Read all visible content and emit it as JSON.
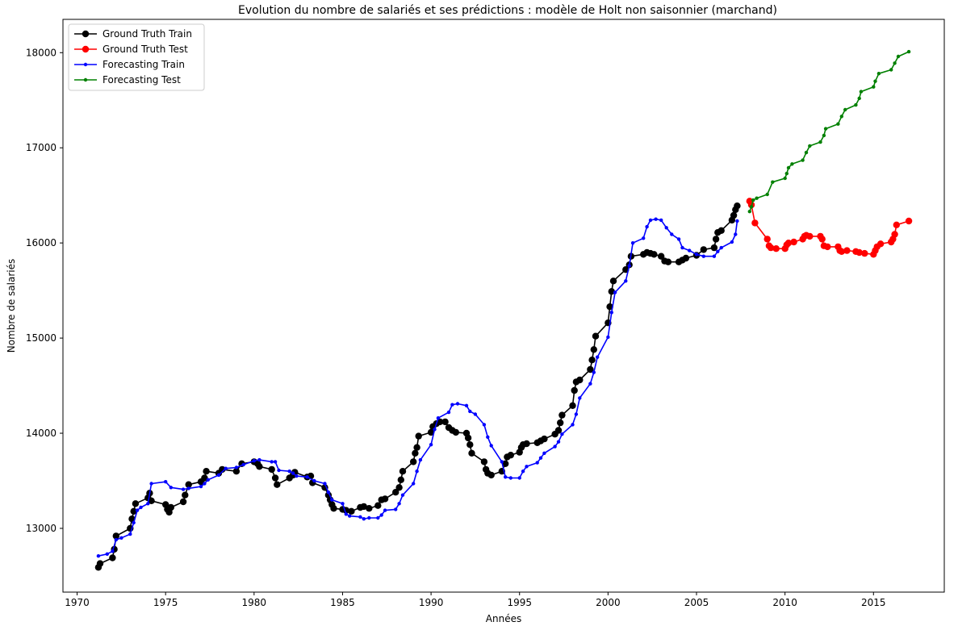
{
  "chart_data": {
    "type": "line",
    "title": "Evolution du nombre de salariés et ses prédictions : modèle de Holt non saisonnier (marchand)",
    "xlabel": "Années",
    "ylabel": "Nombre de salariés",
    "xlim": [
      1969.2,
      2019.0
    ],
    "ylim": [
      12330,
      18350
    ],
    "xticks": [
      1970,
      1975,
      1980,
      1985,
      1990,
      1995,
      2000,
      2005,
      2010,
      2015
    ],
    "yticks": [
      13000,
      14000,
      15000,
      16000,
      17000,
      18000
    ],
    "grid": false,
    "legend_position": "top-left",
    "series": [
      {
        "name": "Ground Truth Train",
        "color": "#000000",
        "marker_size": "large",
        "points": [
          [
            1971.2,
            12590
          ],
          [
            1971.3,
            12630
          ],
          [
            1972.0,
            12690
          ],
          [
            1972.1,
            12780
          ],
          [
            1972.2,
            12920
          ],
          [
            1973.0,
            13000
          ],
          [
            1973.1,
            13100
          ],
          [
            1973.2,
            13180
          ],
          [
            1973.3,
            13260
          ],
          [
            1974.0,
            13320
          ],
          [
            1974.1,
            13370
          ],
          [
            1974.2,
            13290
          ],
          [
            1975.0,
            13250
          ],
          [
            1975.1,
            13200
          ],
          [
            1975.2,
            13170
          ],
          [
            1975.3,
            13220
          ],
          [
            1976.0,
            13280
          ],
          [
            1976.1,
            13350
          ],
          [
            1976.3,
            13460
          ],
          [
            1977.0,
            13490
          ],
          [
            1977.2,
            13530
          ],
          [
            1977.3,
            13600
          ],
          [
            1978.0,
            13580
          ],
          [
            1978.2,
            13620
          ],
          [
            1979.0,
            13600
          ],
          [
            1979.3,
            13680
          ],
          [
            1980.0,
            13700
          ],
          [
            1980.2,
            13680
          ],
          [
            1980.3,
            13650
          ],
          [
            1981.0,
            13620
          ],
          [
            1981.2,
            13530
          ],
          [
            1981.3,
            13460
          ],
          [
            1982.0,
            13530
          ],
          [
            1982.2,
            13560
          ],
          [
            1982.3,
            13590
          ],
          [
            1983.0,
            13540
          ],
          [
            1983.2,
            13550
          ],
          [
            1983.3,
            13480
          ],
          [
            1984.0,
            13430
          ],
          [
            1984.2,
            13350
          ],
          [
            1984.3,
            13300
          ],
          [
            1984.4,
            13250
          ],
          [
            1984.5,
            13210
          ],
          [
            1985.0,
            13200
          ],
          [
            1985.2,
            13190
          ],
          [
            1985.5,
            13180
          ],
          [
            1986.0,
            13220
          ],
          [
            1986.2,
            13230
          ],
          [
            1986.5,
            13210
          ],
          [
            1987.0,
            13240
          ],
          [
            1987.2,
            13300
          ],
          [
            1987.4,
            13310
          ],
          [
            1988.0,
            13380
          ],
          [
            1988.2,
            13430
          ],
          [
            1988.3,
            13510
          ],
          [
            1988.4,
            13600
          ],
          [
            1989.0,
            13700
          ],
          [
            1989.1,
            13790
          ],
          [
            1989.2,
            13850
          ],
          [
            1989.3,
            13970
          ],
          [
            1990.0,
            14010
          ],
          [
            1990.1,
            14070
          ],
          [
            1990.3,
            14100
          ],
          [
            1990.5,
            14120
          ],
          [
            1990.8,
            14120
          ],
          [
            1991.0,
            14060
          ],
          [
            1991.2,
            14030
          ],
          [
            1991.4,
            14010
          ],
          [
            1992.0,
            14000
          ],
          [
            1992.1,
            13950
          ],
          [
            1992.2,
            13880
          ],
          [
            1992.3,
            13790
          ],
          [
            1993.0,
            13700
          ],
          [
            1993.1,
            13620
          ],
          [
            1993.2,
            13580
          ],
          [
            1993.4,
            13560
          ],
          [
            1994.0,
            13600
          ],
          [
            1994.2,
            13680
          ],
          [
            1994.3,
            13750
          ],
          [
            1994.5,
            13770
          ],
          [
            1995.0,
            13800
          ],
          [
            1995.1,
            13850
          ],
          [
            1995.2,
            13880
          ],
          [
            1995.4,
            13890
          ],
          [
            1996.0,
            13900
          ],
          [
            1996.2,
            13920
          ],
          [
            1996.4,
            13940
          ],
          [
            1997.0,
            13990
          ],
          [
            1997.2,
            14030
          ],
          [
            1997.3,
            14110
          ],
          [
            1997.4,
            14190
          ],
          [
            1998.0,
            14290
          ],
          [
            1998.1,
            14450
          ],
          [
            1998.2,
            14540
          ],
          [
            1998.4,
            14560
          ],
          [
            1999.0,
            14670
          ],
          [
            1999.1,
            14770
          ],
          [
            1999.2,
            14880
          ],
          [
            1999.3,
            15020
          ],
          [
            2000.0,
            15160
          ],
          [
            2000.1,
            15330
          ],
          [
            2000.2,
            15490
          ],
          [
            2000.3,
            15600
          ],
          [
            2001.0,
            15720
          ],
          [
            2001.2,
            15770
          ],
          [
            2001.3,
            15860
          ],
          [
            2002.0,
            15880
          ],
          [
            2002.2,
            15900
          ],
          [
            2002.4,
            15890
          ],
          [
            2002.6,
            15880
          ],
          [
            2003.0,
            15860
          ],
          [
            2003.2,
            15810
          ],
          [
            2003.4,
            15800
          ],
          [
            2004.0,
            15800
          ],
          [
            2004.2,
            15820
          ],
          [
            2004.4,
            15840
          ],
          [
            2005.0,
            15870
          ],
          [
            2005.4,
            15930
          ],
          [
            2006.0,
            15950
          ],
          [
            2006.1,
            16040
          ],
          [
            2006.2,
            16110
          ],
          [
            2006.4,
            16130
          ],
          [
            2007.0,
            16240
          ],
          [
            2007.1,
            16290
          ],
          [
            2007.2,
            16350
          ],
          [
            2007.3,
            16390
          ]
        ]
      },
      {
        "name": "Ground Truth Test",
        "color": "#ff0000",
        "marker_size": "large",
        "points": [
          [
            2008.0,
            16440
          ],
          [
            2008.1,
            16400
          ],
          [
            2008.3,
            16210
          ],
          [
            2009.0,
            16040
          ],
          [
            2009.1,
            15970
          ],
          [
            2009.2,
            15950
          ],
          [
            2009.5,
            15940
          ],
          [
            2010.0,
            15940
          ],
          [
            2010.1,
            15980
          ],
          [
            2010.2,
            16000
          ],
          [
            2010.5,
            16010
          ],
          [
            2011.0,
            16040
          ],
          [
            2011.1,
            16070
          ],
          [
            2011.2,
            16080
          ],
          [
            2011.4,
            16070
          ],
          [
            2012.0,
            16070
          ],
          [
            2012.1,
            16040
          ],
          [
            2012.2,
            15970
          ],
          [
            2012.4,
            15960
          ],
          [
            2013.0,
            15960
          ],
          [
            2013.1,
            15920
          ],
          [
            2013.2,
            15910
          ],
          [
            2013.5,
            15920
          ],
          [
            2014.0,
            15910
          ],
          [
            2014.2,
            15900
          ],
          [
            2014.5,
            15890
          ],
          [
            2015.0,
            15880
          ],
          [
            2015.1,
            15920
          ],
          [
            2015.2,
            15960
          ],
          [
            2015.4,
            15990
          ],
          [
            2016.0,
            16010
          ],
          [
            2016.1,
            16040
          ],
          [
            2016.2,
            16090
          ],
          [
            2016.3,
            16190
          ],
          [
            2017.0,
            16230
          ]
        ]
      },
      {
        "name": "Forecasting Train",
        "color": "#0000ff",
        "marker_size": "small",
        "points": [
          [
            1971.2,
            12710
          ],
          [
            1971.7,
            12730
          ],
          [
            1972.0,
            12760
          ],
          [
            1972.2,
            12880
          ],
          [
            1972.5,
            12900
          ],
          [
            1973.0,
            12940
          ],
          [
            1973.2,
            13060
          ],
          [
            1973.4,
            13190
          ],
          [
            1973.6,
            13220
          ],
          [
            1974.0,
            13260
          ],
          [
            1974.2,
            13470
          ],
          [
            1975.0,
            13490
          ],
          [
            1975.3,
            13430
          ],
          [
            1976.0,
            13410
          ],
          [
            1976.3,
            13420
          ],
          [
            1977.0,
            13440
          ],
          [
            1977.2,
            13470
          ],
          [
            1977.4,
            13510
          ],
          [
            1978.0,
            13560
          ],
          [
            1978.4,
            13630
          ],
          [
            1979.0,
            13640
          ],
          [
            1979.4,
            13670
          ],
          [
            1980.0,
            13710
          ],
          [
            1980.3,
            13720
          ],
          [
            1981.0,
            13700
          ],
          [
            1981.2,
            13700
          ],
          [
            1981.4,
            13610
          ],
          [
            1982.0,
            13600
          ],
          [
            1982.2,
            13580
          ],
          [
            1982.4,
            13550
          ],
          [
            1983.0,
            13540
          ],
          [
            1983.4,
            13500
          ],
          [
            1984.0,
            13470
          ],
          [
            1984.2,
            13380
          ],
          [
            1984.4,
            13300
          ],
          [
            1985.0,
            13260
          ],
          [
            1985.2,
            13150
          ],
          [
            1985.4,
            13130
          ],
          [
            1986.0,
            13120
          ],
          [
            1986.2,
            13100
          ],
          [
            1986.5,
            13110
          ],
          [
            1987.0,
            13110
          ],
          [
            1987.2,
            13140
          ],
          [
            1987.4,
            13190
          ],
          [
            1988.0,
            13200
          ],
          [
            1988.2,
            13260
          ],
          [
            1988.4,
            13350
          ],
          [
            1989.0,
            13470
          ],
          [
            1989.2,
            13600
          ],
          [
            1989.4,
            13720
          ],
          [
            1990.0,
            13880
          ],
          [
            1990.2,
            14040
          ],
          [
            1990.4,
            14160
          ],
          [
            1991.0,
            14220
          ],
          [
            1991.2,
            14300
          ],
          [
            1991.5,
            14310
          ],
          [
            1992.0,
            14290
          ],
          [
            1992.2,
            14230
          ],
          [
            1992.5,
            14200
          ],
          [
            1993.0,
            14090
          ],
          [
            1993.2,
            13960
          ],
          [
            1993.4,
            13870
          ],
          [
            1994.0,
            13700
          ],
          [
            1994.2,
            13540
          ],
          [
            1994.5,
            13530
          ],
          [
            1995.0,
            13530
          ],
          [
            1995.2,
            13600
          ],
          [
            1995.4,
            13650
          ],
          [
            1996.0,
            13690
          ],
          [
            1996.2,
            13740
          ],
          [
            1996.4,
            13790
          ],
          [
            1997.0,
            13860
          ],
          [
            1997.2,
            13910
          ],
          [
            1997.4,
            13990
          ],
          [
            1998.0,
            14090
          ],
          [
            1998.2,
            14200
          ],
          [
            1998.4,
            14370
          ],
          [
            1999.0,
            14520
          ],
          [
            1999.2,
            14640
          ],
          [
            1999.4,
            14800
          ],
          [
            2000.0,
            15010
          ],
          [
            2000.2,
            15270
          ],
          [
            2000.4,
            15480
          ],
          [
            2001.0,
            15600
          ],
          [
            2001.2,
            15760
          ],
          [
            2001.4,
            16000
          ],
          [
            2002.0,
            16050
          ],
          [
            2002.2,
            16170
          ],
          [
            2002.4,
            16240
          ],
          [
            2002.7,
            16250
          ],
          [
            2003.0,
            16240
          ],
          [
            2003.3,
            16160
          ],
          [
            2003.6,
            16090
          ],
          [
            2004.0,
            16040
          ],
          [
            2004.2,
            15950
          ],
          [
            2004.6,
            15920
          ],
          [
            2005.0,
            15880
          ],
          [
            2005.4,
            15860
          ],
          [
            2006.0,
            15860
          ],
          [
            2006.2,
            15910
          ],
          [
            2006.4,
            15950
          ],
          [
            2007.0,
            16010
          ],
          [
            2007.2,
            16090
          ],
          [
            2007.3,
            16230
          ]
        ]
      },
      {
        "name": "Forecasting Test",
        "color": "#008000",
        "marker_size": "small",
        "points": [
          [
            2008.0,
            16330
          ],
          [
            2008.1,
            16380
          ],
          [
            2008.2,
            16450
          ],
          [
            2008.4,
            16470
          ],
          [
            2009.0,
            16510
          ],
          [
            2009.3,
            16640
          ],
          [
            2010.0,
            16680
          ],
          [
            2010.1,
            16730
          ],
          [
            2010.2,
            16790
          ],
          [
            2010.4,
            16830
          ],
          [
            2011.0,
            16870
          ],
          [
            2011.2,
            16950
          ],
          [
            2011.4,
            17020
          ],
          [
            2012.0,
            17060
          ],
          [
            2012.2,
            17130
          ],
          [
            2012.3,
            17200
          ],
          [
            2013.0,
            17250
          ],
          [
            2013.2,
            17330
          ],
          [
            2013.4,
            17400
          ],
          [
            2014.0,
            17450
          ],
          [
            2014.2,
            17520
          ],
          [
            2014.3,
            17590
          ],
          [
            2015.0,
            17640
          ],
          [
            2015.1,
            17700
          ],
          [
            2015.3,
            17780
          ],
          [
            2016.0,
            17820
          ],
          [
            2016.2,
            17890
          ],
          [
            2016.4,
            17960
          ],
          [
            2017.0,
            18010
          ]
        ]
      }
    ]
  }
}
